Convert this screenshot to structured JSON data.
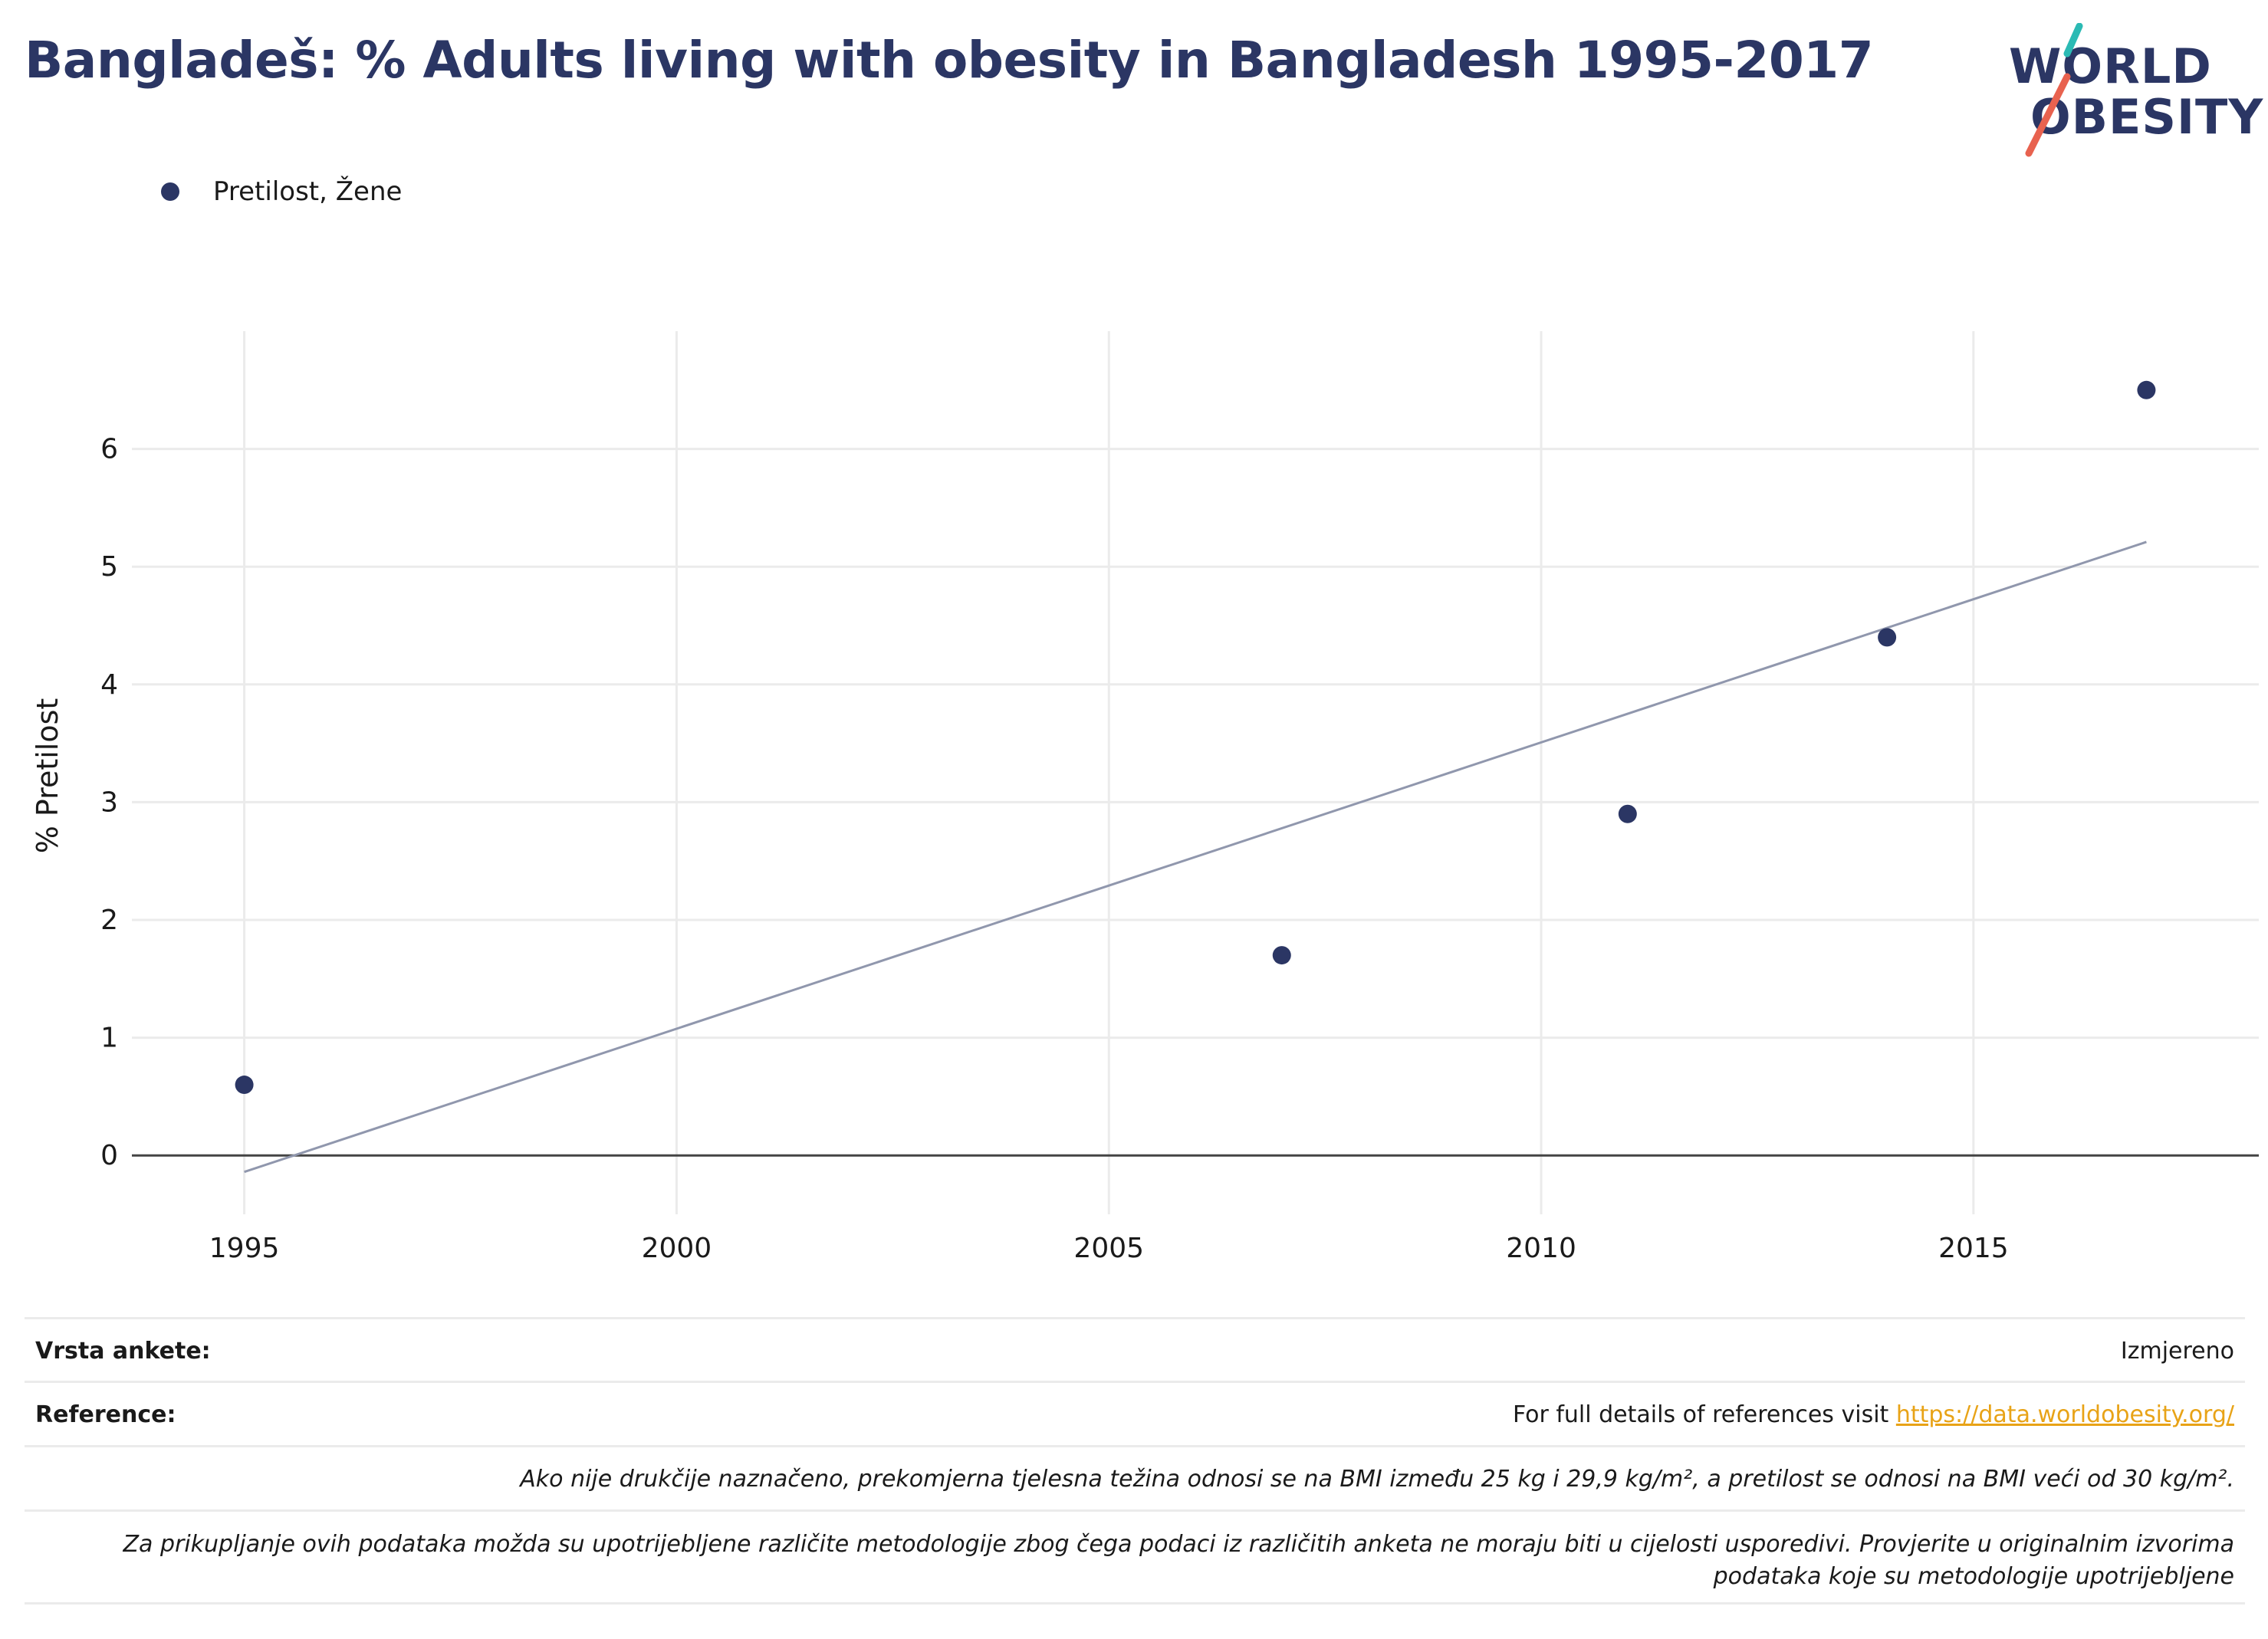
{
  "title": "Bangladeš: % Adults living with obesity in Bangladesh 1995-2017",
  "logo": {
    "line1": "WORLD",
    "line2": "OBESITY"
  },
  "colors": {
    "primary": "#2b3664",
    "trend": "#9097ad",
    "accent_red": "#e8624f",
    "accent_teal": "#2bbab4",
    "link": "#e8a317"
  },
  "chart_data": {
    "type": "scatter",
    "legend": "top-left",
    "grid": true,
    "xlim": [
      1993.7,
      2018.3
    ],
    "ylim": [
      -0.5,
      7.0
    ],
    "xticks": [
      1995,
      2000,
      2005,
      2010,
      2015
    ],
    "yticks": [
      0,
      1,
      2,
      3,
      4,
      5,
      6
    ],
    "ylabel": "% Pretilost",
    "xlabel": "",
    "series": [
      {
        "name": "Pretilost, Žene",
        "x": [
          1995,
          2007,
          2011,
          2014,
          2017
        ],
        "y": [
          0.6,
          1.7,
          2.9,
          4.4,
          6.5
        ]
      }
    ],
    "trendline": {
      "x": [
        1995,
        2017
      ],
      "y": [
        -0.14,
        5.21
      ]
    }
  },
  "table": {
    "survey_label": "Vrsta ankete:",
    "survey_value": "Izmjereno",
    "ref_label": "Reference:",
    "ref_text": "For full details of references visit ",
    "ref_link": "https://data.worldobesity.org/",
    "note1": "Ako nije drukčije naznačeno, prekomjerna tjelesna težina odnosi se na BMI između 25 kg i 29,9 kg/m², a pretilost se odnosi na BMI veći od 30 kg/m².",
    "note2": "Za prikupljanje ovih podataka možda su upotrijebljene različite metodologije zbog čega podaci iz različitih anketa ne moraju biti u cijelosti usporedivi. Provjerite u originalnim izvorima podataka koje su metodologije upotrijebljene"
  }
}
